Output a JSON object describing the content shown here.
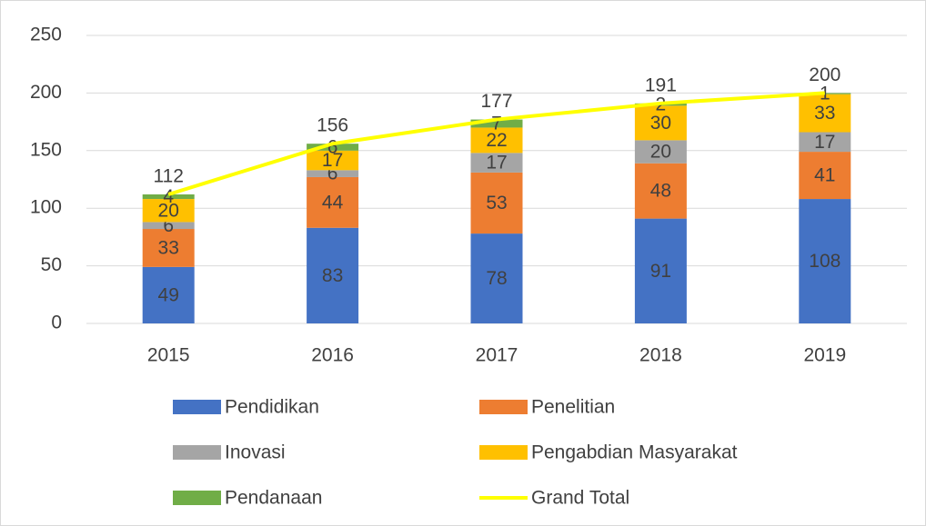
{
  "chart_data": {
    "type": "bar",
    "stacked": true,
    "categories": [
      "2015",
      "2016",
      "2017",
      "2018",
      "2019"
    ],
    "series": [
      {
        "name": "Pendidikan",
        "color": "#4472c4",
        "values": [
          49,
          83,
          78,
          91,
          108
        ]
      },
      {
        "name": "Penelitian",
        "color": "#ed7d31",
        "values": [
          33,
          44,
          53,
          48,
          41
        ]
      },
      {
        "name": "Inovasi",
        "color": "#a5a5a5",
        "values": [
          6,
          6,
          17,
          20,
          17
        ]
      },
      {
        "name": "Pengabdian Masyarakat",
        "color": "#ffc000",
        "values": [
          20,
          17,
          22,
          30,
          33
        ]
      },
      {
        "name": "Pendanaan",
        "color": "#70ad47",
        "values": [
          4,
          6,
          7,
          2,
          1
        ]
      },
      {
        "name": "Grand Total",
        "color": "#ffff00",
        "type": "line",
        "values": [
          112,
          156,
          177,
          191,
          200
        ]
      }
    ],
    "ylim": [
      0,
      250
    ],
    "yticks": [
      0,
      50,
      100,
      150,
      200,
      250
    ],
    "grid": true,
    "legend": "bottom"
  }
}
